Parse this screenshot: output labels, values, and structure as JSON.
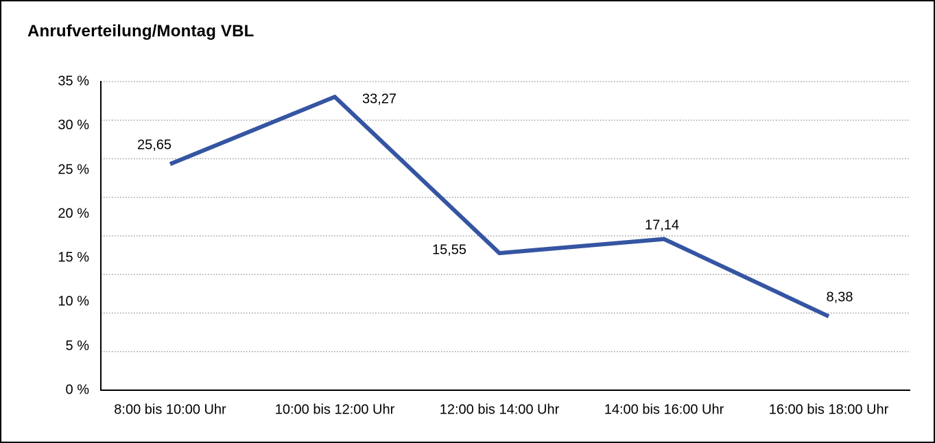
{
  "chart_data": {
    "type": "line",
    "title": "Anrufverteilung/Montag VBL",
    "categories": [
      "8:00 bis 10:00 Uhr",
      "10:00 bis 12:00 Uhr",
      "12:00 bis 14:00 Uhr",
      "14:00 bis 16:00 Uhr",
      "16:00 bis 18:00 Uhr"
    ],
    "values": [
      25.65,
      33.27,
      15.55,
      17.14,
      8.38
    ],
    "point_labels": [
      "25,65",
      "33,27",
      "15,55",
      "17,14",
      "8,38"
    ],
    "ytick_labels": [
      "35 %",
      "30 %",
      "25 %",
      "20 %",
      "15 %",
      "10 %",
      "5 %",
      "0 %"
    ],
    "ytick_values": [
      35,
      30,
      25,
      20,
      15,
      10,
      5,
      0
    ],
    "ylim": [
      0,
      35
    ],
    "xlabel": "",
    "ylabel": "",
    "legend": "none",
    "grid": "horizontal-dotted",
    "gridline_count": 8,
    "colors": {
      "series_line": "#3555A2",
      "gridline": "#8c8c8c",
      "axis": "#000000",
      "text": "#000000",
      "background": "#ffffff"
    }
  }
}
